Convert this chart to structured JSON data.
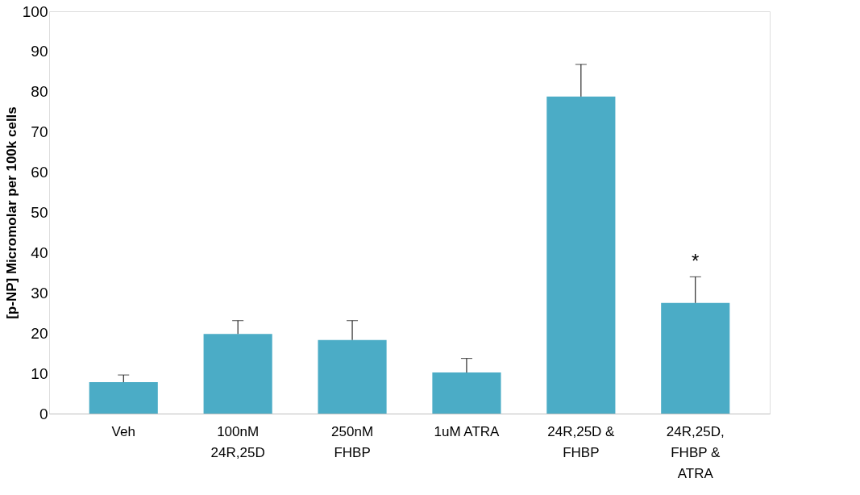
{
  "chart_data": {
    "type": "bar",
    "ylabel": "[p-NP] Micromolar per 100k cells",
    "categories": [
      "Veh",
      "100nM 24R,25D",
      "250nM FHBP",
      "1uM ATRA",
      "24R,25D & FHBP",
      "24R,25D, FHBP & ATRA"
    ],
    "values": [
      7.8,
      19.8,
      18.3,
      10.2,
      78.8,
      27.5
    ],
    "errors": [
      [
        7.8,
        9.6
      ],
      [
        19.8,
        23.1
      ],
      [
        18.3,
        23.1
      ],
      [
        10.2,
        13.7
      ],
      [
        78.8,
        86.8
      ],
      [
        27.5,
        34
      ]
    ],
    "color": "#4bacc6",
    "ylim": [
      0,
      100
    ],
    "yticks": [
      0,
      10,
      20,
      30,
      40,
      50,
      60,
      70,
      80,
      90,
      100
    ],
    "grid": false,
    "annotations": [
      {
        "text": "*",
        "x": "24R,25D, FHBP & ATRA",
        "y": 27.5
      }
    ]
  }
}
